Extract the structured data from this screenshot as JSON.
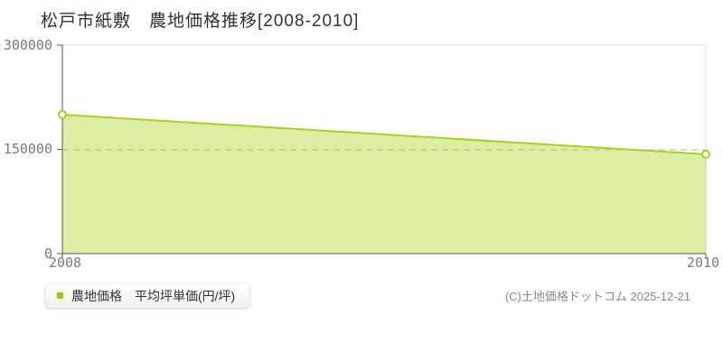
{
  "title": "松戸市紙敷　農地価格推移[2008-2010]",
  "chart_data": {
    "type": "area",
    "title": "松戸市紙敷　農地価格推移[2008-2010]",
    "x": [
      2008,
      2010
    ],
    "series": [
      {
        "name": "農地価格　平均坪単価(円/坪)",
        "values": [
          200000,
          143000
        ]
      }
    ],
    "xlabel": "",
    "ylabel": "",
    "xlim": [
      2008,
      2010
    ],
    "ylim": [
      0,
      300000
    ],
    "yticks": [
      0,
      150000,
      300000
    ],
    "xticks": [
      2008,
      2010
    ],
    "dashed_gridline_y": 150000,
    "grid": "top-right-border, dashed line at 150000",
    "legend_position": "bottom-left",
    "colors": {
      "line": "#a6d41c",
      "fill": "#dcea9b",
      "fill_opacity": 0.4,
      "marker_fill": "#ffffff",
      "axis": "#555555",
      "border": "#dddddd",
      "dashed_grid": "#b5b5b5"
    }
  },
  "axes": {
    "y_tick_labels": [
      "300000",
      "150000",
      "0"
    ],
    "x_tick_labels": [
      "2008",
      "2010"
    ]
  },
  "legend": {
    "label": "農地価格　平均坪単価(円/坪)",
    "swatch_color": "#9fc813"
  },
  "footer": {
    "copyright": "(C)土地価格ドットコム 2025-12-21"
  }
}
